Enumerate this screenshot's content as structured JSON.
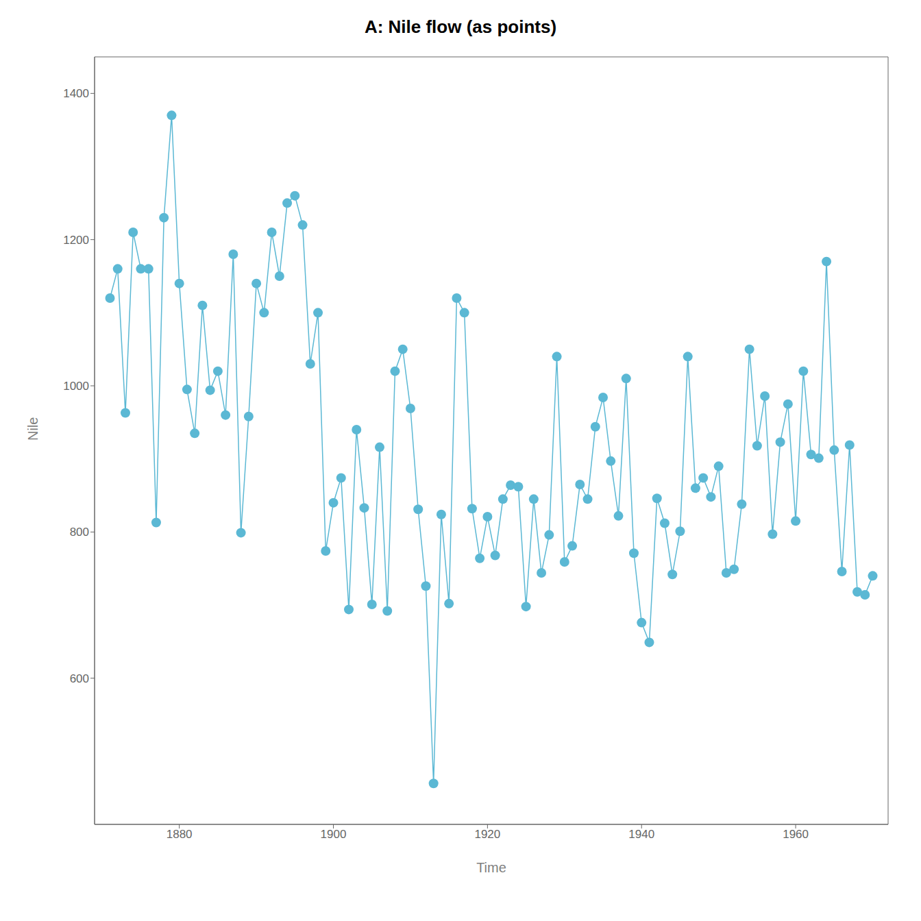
{
  "chart_data": {
    "type": "line",
    "title": "A: Nile flow (as points)",
    "xlabel": "Time",
    "ylabel": "Nile",
    "x": [
      1871,
      1872,
      1873,
      1874,
      1875,
      1876,
      1877,
      1878,
      1879,
      1880,
      1881,
      1882,
      1883,
      1884,
      1885,
      1886,
      1887,
      1888,
      1889,
      1890,
      1891,
      1892,
      1893,
      1894,
      1895,
      1896,
      1897,
      1898,
      1899,
      1900,
      1901,
      1902,
      1903,
      1904,
      1905,
      1906,
      1907,
      1908,
      1909,
      1910,
      1911,
      1912,
      1913,
      1914,
      1915,
      1916,
      1917,
      1918,
      1919,
      1920,
      1921,
      1922,
      1923,
      1924,
      1925,
      1926,
      1927,
      1928,
      1929,
      1930,
      1931,
      1932,
      1933,
      1934,
      1935,
      1936,
      1937,
      1938,
      1939,
      1940,
      1941,
      1942,
      1943,
      1944,
      1945,
      1946,
      1947,
      1948,
      1949,
      1950,
      1951,
      1952,
      1953,
      1954,
      1955,
      1956,
      1957,
      1958,
      1959,
      1960,
      1961,
      1962,
      1963,
      1964,
      1965,
      1966,
      1967,
      1968,
      1969,
      1970
    ],
    "values": [
      1120,
      1160,
      963,
      1210,
      1160,
      1160,
      813,
      1230,
      1370,
      1140,
      995,
      935,
      1110,
      994,
      1020,
      960,
      1180,
      799,
      958,
      1140,
      1100,
      1210,
      1150,
      1250,
      1260,
      1220,
      1030,
      1100,
      774,
      840,
      874,
      694,
      940,
      833,
      701,
      916,
      692,
      1020,
      1050,
      969,
      831,
      726,
      456,
      824,
      702,
      1120,
      1100,
      832,
      764,
      821,
      768,
      845,
      864,
      862,
      698,
      845,
      744,
      796,
      1040,
      759,
      781,
      865,
      845,
      944,
      984,
      897,
      822,
      1010,
      771,
      676,
      649,
      846,
      812,
      742,
      801,
      1040,
      860,
      874,
      848,
      890,
      744,
      749,
      838,
      1050,
      918,
      986,
      797,
      923,
      975,
      815,
      1020,
      906,
      901,
      1170,
      912,
      746,
      919,
      718,
      714,
      740
    ],
    "color": "#5BB8D4",
    "marker": "circle",
    "xlim": [
      1869,
      1972
    ],
    "ylim": [
      400,
      1450
    ],
    "xticks": [
      1880,
      1900,
      1920,
      1940,
      1960
    ],
    "yticks": [
      600,
      800,
      1000,
      1200,
      1400
    ],
    "grid": false
  }
}
